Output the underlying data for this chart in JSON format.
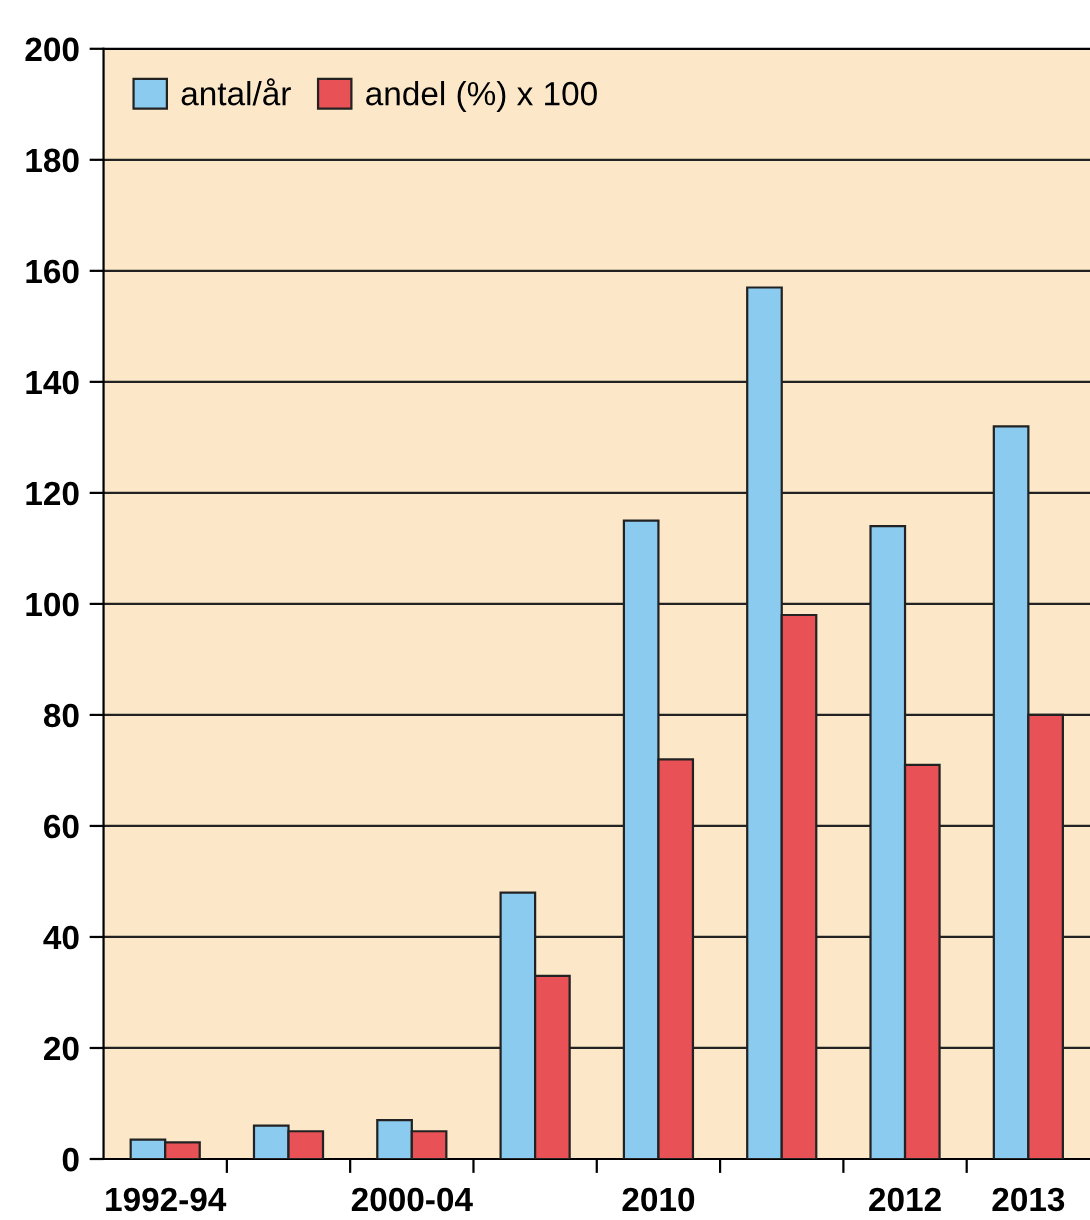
{
  "chart_data": {
    "type": "bar",
    "categories": [
      "1992-94",
      null,
      "2000-04",
      null,
      "2010",
      null,
      "2012",
      "2013"
    ],
    "series": [
      {
        "name": "antal/år",
        "color": "#8ccbf0",
        "values": [
          3.5,
          6,
          7,
          48,
          115,
          157,
          114,
          132
        ]
      },
      {
        "name": "andel (%) x 100",
        "color": "#e85155",
        "values": [
          3,
          5,
          5,
          33,
          72,
          98,
          71,
          80
        ]
      }
    ],
    "ylim": [
      0,
      200
    ],
    "yticks": [
      0,
      20,
      40,
      60,
      80,
      100,
      120,
      140,
      160,
      180,
      200
    ],
    "grid": "y",
    "legend": "top left"
  }
}
